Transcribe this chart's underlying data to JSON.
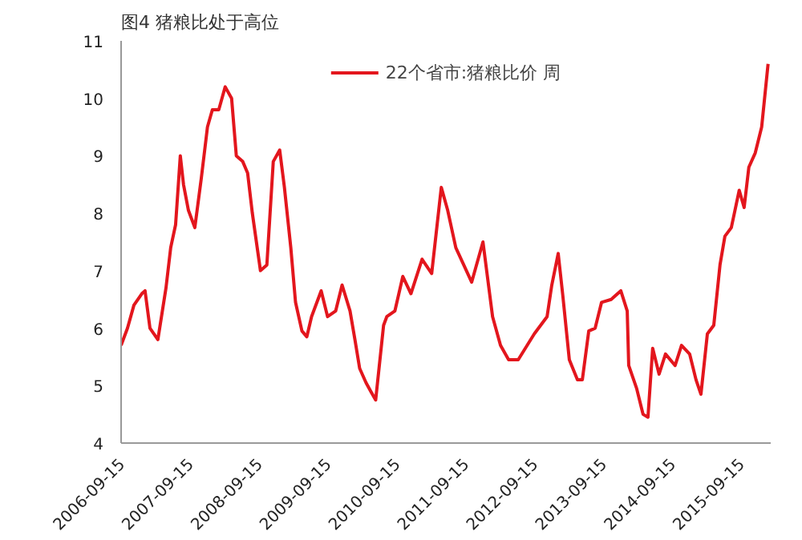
{
  "chart_data": {
    "type": "line",
    "title": "图4 猪粮比处于高位",
    "x": [
      "2006-09-15",
      "2006-10-19",
      "2006-11-22",
      "2007-01-03",
      "2007-01-20",
      "2007-02-15",
      "2007-03-29",
      "2007-05-11",
      "2007-06-05",
      "2007-07-01",
      "2007-07-26",
      "2007-08-12",
      "2007-09-07",
      "2007-10-11",
      "2007-11-14",
      "2007-12-17",
      "2008-01-12",
      "2008-02-15",
      "2008-03-20",
      "2008-04-23",
      "2008-05-18",
      "2008-06-21",
      "2008-07-17",
      "2008-08-11",
      "2008-09-23",
      "2008-10-27",
      "2008-11-30",
      "2009-01-03",
      "2009-01-28",
      "2009-03-03",
      "2009-03-28",
      "2009-05-01",
      "2009-05-27",
      "2009-06-21",
      "2009-08-11",
      "2009-09-14",
      "2009-10-27",
      "2009-11-30",
      "2010-01-11",
      "2010-02-06",
      "2010-03-03",
      "2010-04-06",
      "2010-05-01",
      "2010-05-27",
      "2010-07-08",
      "2010-07-25",
      "2010-09-06",
      "2010-10-18",
      "2010-11-30",
      "2011-01-28",
      "2011-03-20",
      "2011-05-10",
      "2011-06-13",
      "2011-07-26",
      "2011-10-18",
      "2011-12-17",
      "2012-02-06",
      "2012-03-19",
      "2012-05-01",
      "2012-06-21",
      "2012-09-14",
      "2012-11-21",
      "2012-12-16",
      "2013-01-19",
      "2013-02-13",
      "2013-03-19",
      "2013-05-01",
      "2013-05-27",
      "2013-06-30",
      "2013-08-03",
      "2013-09-06",
      "2013-10-27",
      "2013-12-17",
      "2014-01-20",
      "2014-01-28",
      "2014-03-11",
      "2014-04-14",
      "2014-05-10",
      "2014-06-04",
      "2014-07-08",
      "2014-08-11",
      "2014-10-01",
      "2014-11-04",
      "2014-12-17",
      "2015-01-20",
      "2015-02-15",
      "2015-03-21",
      "2015-04-24",
      "2015-05-27",
      "2015-06-22",
      "2015-07-26",
      "2015-09-06",
      "2015-10-02",
      "2015-10-27",
      "2015-11-30",
      "2016-01-03",
      "2016-02-06"
    ],
    "series": [
      {
        "name": "22个省市:猪粮比价 周",
        "color": "#e3161d",
        "values": [
          5.7,
          6.0,
          6.4,
          6.6,
          6.65,
          6.0,
          5.8,
          6.7,
          7.4,
          7.8,
          9.0,
          8.5,
          8.05,
          7.75,
          8.6,
          9.5,
          9.8,
          9.8,
          10.2,
          10.0,
          9.0,
          8.9,
          8.7,
          8.0,
          7.0,
          7.1,
          8.9,
          9.1,
          8.45,
          7.4,
          6.45,
          5.95,
          5.85,
          6.2,
          6.65,
          6.2,
          6.3,
          6.75,
          6.3,
          5.8,
          5.3,
          5.05,
          4.9,
          4.75,
          6.05,
          6.2,
          6.3,
          6.9,
          6.6,
          7.2,
          6.95,
          8.45,
          8.05,
          7.4,
          6.8,
          7.5,
          6.2,
          5.7,
          5.45,
          5.45,
          5.9,
          6.2,
          6.75,
          7.3,
          6.55,
          5.45,
          5.1,
          5.1,
          5.95,
          6.0,
          6.45,
          6.5,
          6.65,
          6.3,
          5.35,
          4.95,
          4.5,
          4.45,
          5.65,
          5.2,
          5.55,
          5.35,
          5.7,
          5.55,
          5.1,
          4.85,
          5.9,
          6.05,
          7.1,
          7.6,
          7.75,
          8.4,
          8.1,
          8.8,
          9.05,
          9.5,
          10.6
        ]
      }
    ],
    "xlim": [
      "2006-09-15",
      "2016-02-20"
    ],
    "xticks": [
      "2006-09-15",
      "2007-09-15",
      "2008-09-15",
      "2009-09-15",
      "2010-09-15",
      "2011-09-15",
      "2012-09-15",
      "2013-09-15",
      "2014-09-15",
      "2015-09-15"
    ],
    "ylim": [
      4,
      11
    ],
    "yticks": [
      4,
      5,
      6,
      7,
      8,
      9,
      10,
      11
    ],
    "legend": "top",
    "grid": false,
    "marker": "none",
    "line_style": "solid"
  }
}
